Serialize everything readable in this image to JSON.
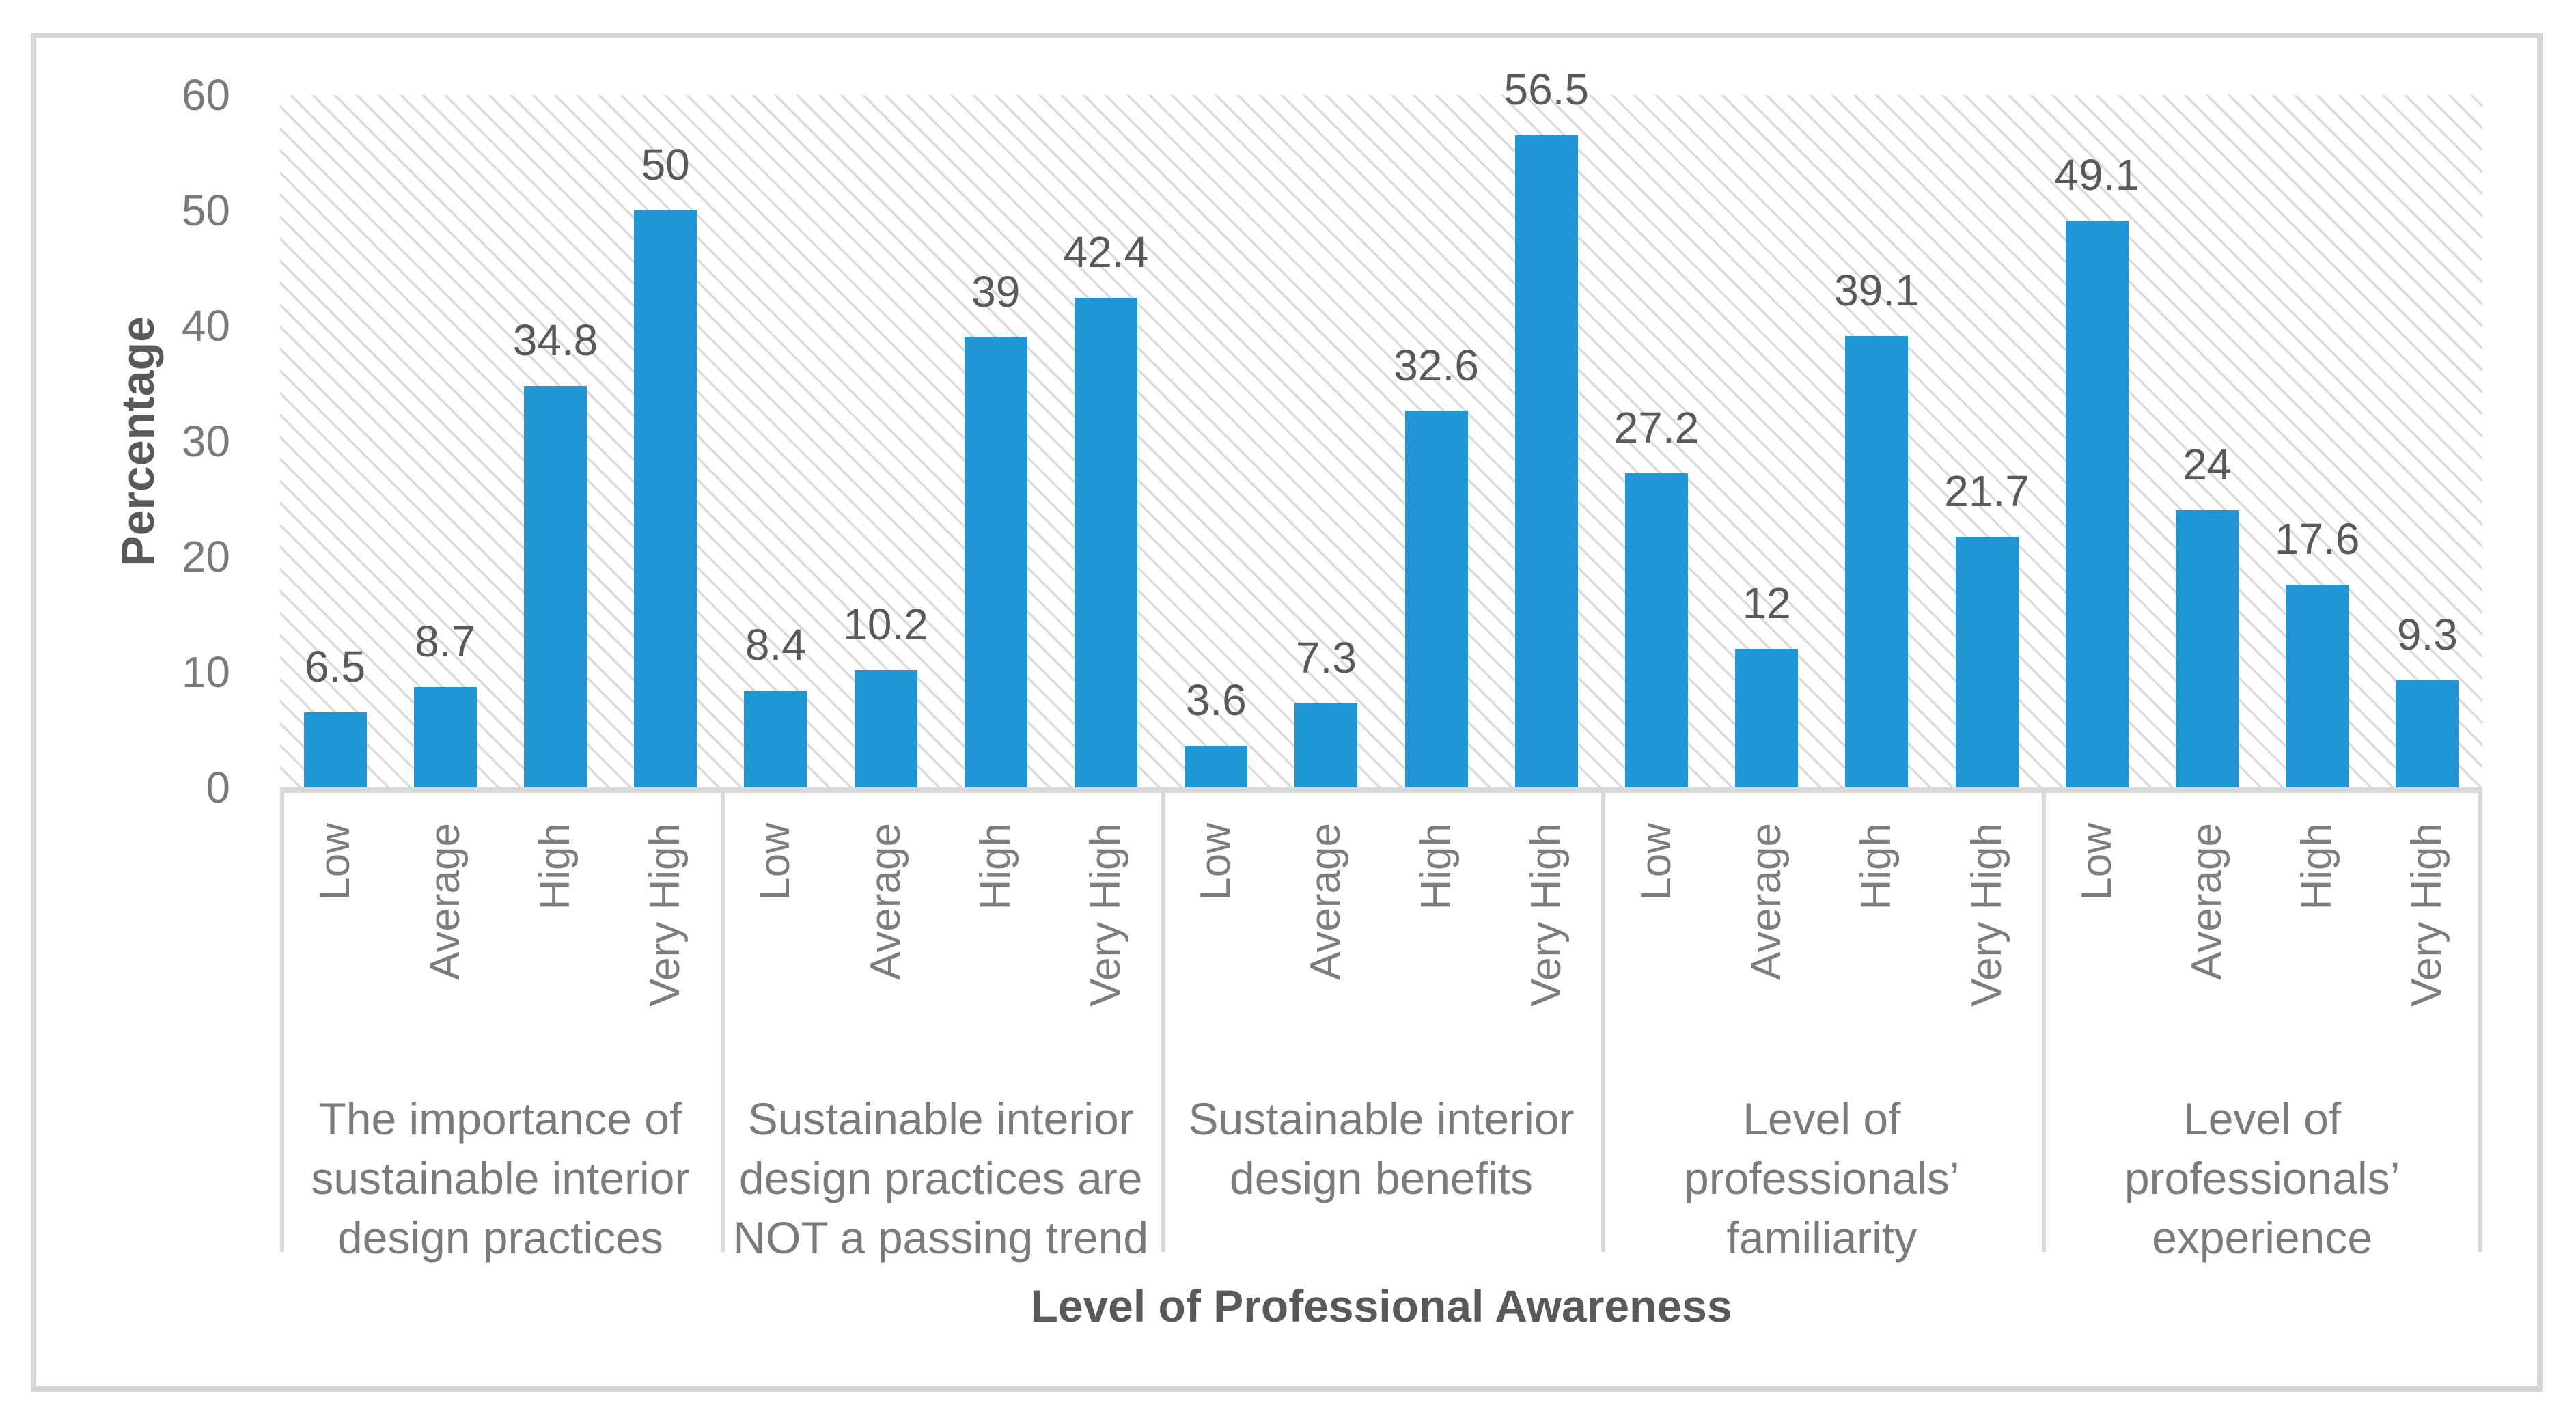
{
  "chart_data": {
    "type": "bar",
    "xlabel": "Level of Professional Awareness",
    "ylabel": "Percentage",
    "ylim": [
      0,
      60
    ],
    "yticks": [
      "0",
      "10",
      "20",
      "30",
      "40",
      "50",
      "60"
    ],
    "grid": "off",
    "legend": "none",
    "bar_color": "#2097d4",
    "axis_line_color": "#d9d9d9",
    "plot_background": "white with light gray diagonal hatch pattern",
    "categories": [
      "Low",
      "Average",
      "High",
      "Very High"
    ],
    "groups": [
      {
        "label_lines": [
          "The importance of",
          "sustainable interior",
          "design practices"
        ],
        "values": [
          6.5,
          8.7,
          34.8,
          50
        ],
        "value_labels": [
          "6.5",
          "8.7",
          "34.8",
          "50"
        ]
      },
      {
        "label_lines": [
          "Sustainable interior",
          "design practices are",
          "NOT a passing trend"
        ],
        "values": [
          8.4,
          10.2,
          39,
          42.4
        ],
        "value_labels": [
          "8.4",
          "10.2",
          "39",
          "42.4"
        ]
      },
      {
        "label_lines": [
          "Sustainable interior",
          "design benefits"
        ],
        "values": [
          3.6,
          7.3,
          32.6,
          56.5
        ],
        "value_labels": [
          "3.6",
          "7.3",
          "32.6",
          "56.5"
        ]
      },
      {
        "label_lines": [
          "Level of",
          "professionals’",
          "familiarity"
        ],
        "values": [
          27.2,
          12,
          39.1,
          21.7
        ],
        "value_labels": [
          "27.2",
          "12",
          "39.1",
          "21.7"
        ]
      },
      {
        "label_lines": [
          "Level of",
          "professionals’",
          "experience"
        ],
        "values": [
          49.1,
          24,
          17.6,
          9.3
        ],
        "value_labels": [
          "49.1",
          "24",
          "17.6",
          "9.3"
        ]
      }
    ]
  }
}
